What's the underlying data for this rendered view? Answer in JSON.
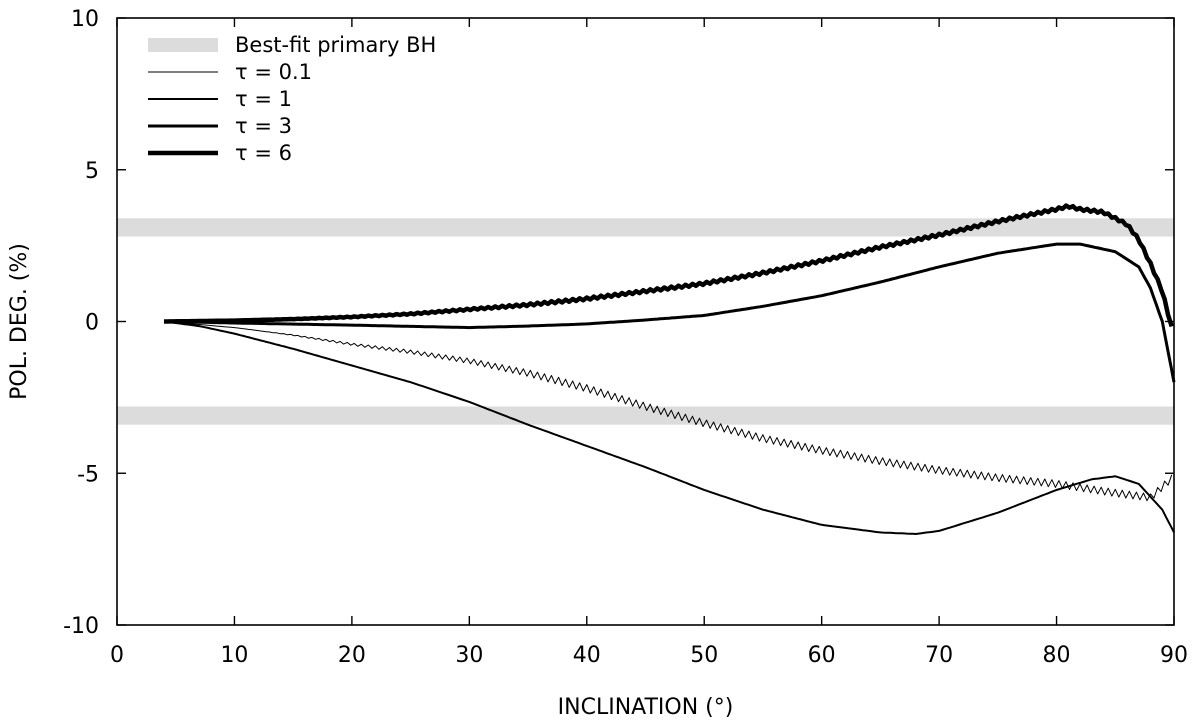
{
  "chart_data": {
    "type": "line",
    "title": "",
    "xlabel": "INCLINATION (°)",
    "ylabel": "POL. DEG. (%)",
    "xlim": [
      0,
      90
    ],
    "ylim": [
      -10,
      10
    ],
    "x_ticks": [
      0,
      10,
      20,
      30,
      40,
      50,
      60,
      70,
      80,
      90
    ],
    "x_tick_labels": [
      "0",
      "10",
      "20",
      "30",
      "40",
      "50",
      "60",
      "70",
      "80",
      "90"
    ],
    "y_ticks": [
      -10,
      -5,
      0,
      5,
      10
    ],
    "y_tick_labels": [
      "-10",
      "-5",
      "0",
      "5",
      "10"
    ],
    "grid": false,
    "legend_position": "top-left",
    "bands": [
      {
        "name": "Best-fit primary BH",
        "ymin": 2.8,
        "ymax": 3.4,
        "color": "#dcdcdc"
      },
      {
        "name": "Best-fit primary BH",
        "ymin": -3.4,
        "ymax": -2.8,
        "color": "#dcdcdc"
      }
    ],
    "legend": [
      {
        "label": "Best-fit primary BH",
        "kind": "band"
      },
      {
        "label": "τ = 0.1",
        "kind": "line",
        "weight": "thin"
      },
      {
        "label": "τ = 1",
        "kind": "line",
        "weight": "normal"
      },
      {
        "label": "τ = 3",
        "kind": "line",
        "weight": "bold"
      },
      {
        "label": "τ = 6",
        "kind": "line",
        "weight": "heavy"
      }
    ],
    "series": [
      {
        "name": "τ = 0.1",
        "weight": "thin",
        "jitter": 0.12,
        "x": [
          4,
          10,
          15,
          20,
          25,
          30,
          35,
          40,
          45,
          50,
          55,
          60,
          65,
          70,
          75,
          80,
          85,
          88,
          90
        ],
        "y": [
          0,
          -0.2,
          -0.45,
          -0.75,
          -1.0,
          -1.3,
          -1.7,
          -2.2,
          -2.8,
          -3.35,
          -3.85,
          -4.25,
          -4.6,
          -4.9,
          -5.15,
          -5.35,
          -5.65,
          -5.8,
          -5.1
        ]
      },
      {
        "name": "τ = 1",
        "weight": "normal",
        "jitter": 0,
        "x": [
          4,
          7,
          10,
          15,
          20,
          25,
          30,
          35,
          40,
          45,
          50,
          55,
          60,
          65,
          68,
          70,
          75,
          80,
          83,
          85,
          87,
          89,
          90
        ],
        "y": [
          0,
          -0.15,
          -0.4,
          -0.9,
          -1.45,
          -2.0,
          -2.65,
          -3.4,
          -4.1,
          -4.8,
          -5.55,
          -6.2,
          -6.7,
          -6.95,
          -7.0,
          -6.9,
          -6.3,
          -5.55,
          -5.2,
          -5.1,
          -5.35,
          -6.2,
          -6.95
        ]
      },
      {
        "name": "τ = 3",
        "weight": "bold",
        "jitter": 0,
        "x": [
          4,
          10,
          20,
          30,
          35,
          40,
          45,
          50,
          55,
          60,
          65,
          70,
          75,
          80,
          82,
          85,
          87,
          88,
          89,
          90
        ],
        "y": [
          0,
          -0.05,
          -0.12,
          -0.2,
          -0.15,
          -0.08,
          0.05,
          0.2,
          0.5,
          0.85,
          1.3,
          1.8,
          2.25,
          2.55,
          2.55,
          2.3,
          1.8,
          1.1,
          0.0,
          -2.0
        ]
      },
      {
        "name": "τ = 6",
        "weight": "heavy",
        "jitter": 0.04,
        "x": [
          4,
          10,
          15,
          20,
          25,
          30,
          35,
          40,
          45,
          50,
          55,
          60,
          65,
          70,
          75,
          80,
          81,
          82,
          84,
          86,
          87,
          88,
          89,
          90
        ],
        "y": [
          0,
          0.03,
          0.08,
          0.15,
          0.25,
          0.4,
          0.55,
          0.75,
          1.0,
          1.25,
          1.6,
          2.0,
          2.45,
          2.85,
          3.3,
          3.7,
          3.8,
          3.7,
          3.6,
          3.2,
          2.7,
          1.9,
          1.0,
          -0.5
        ]
      }
    ]
  }
}
